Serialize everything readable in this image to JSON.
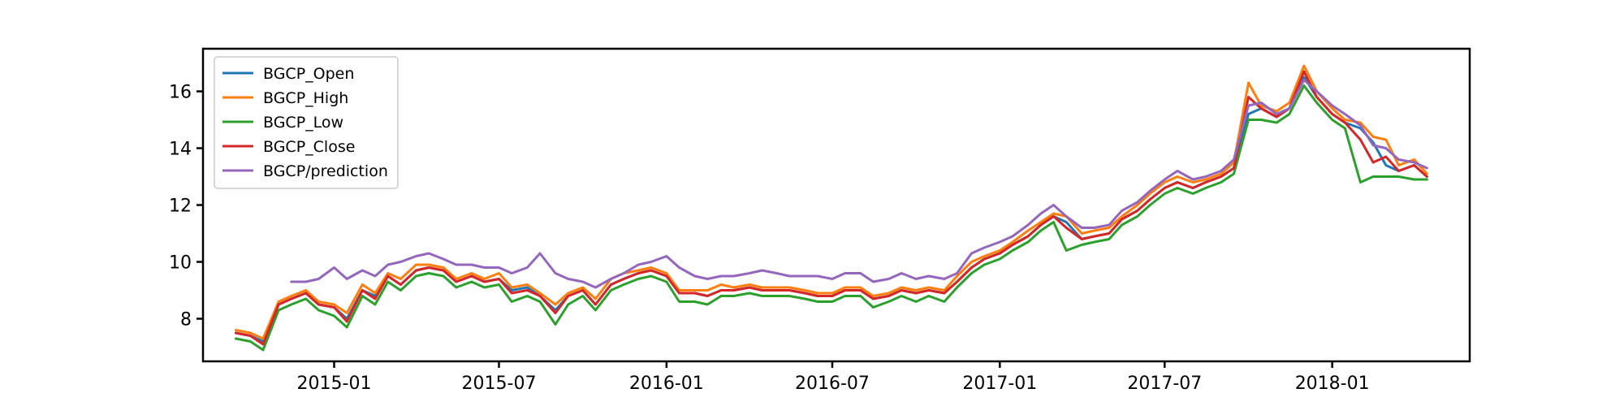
{
  "chart_data": {
    "type": "line",
    "title": "",
    "xlabel": "",
    "ylabel": "",
    "xlim": [
      "2014-08-10",
      "2018-06-01"
    ],
    "ylim": [
      6.5,
      17.5
    ],
    "x_ticks": [
      "2015-01",
      "2015-07",
      "2016-01",
      "2016-07",
      "2017-01",
      "2017-07",
      "2018-01"
    ],
    "y_ticks": [
      8,
      10,
      12,
      14,
      16
    ],
    "grid": false,
    "legend_position": "top-left",
    "x": [
      "2014-09-15",
      "2014-10-01",
      "2014-10-15",
      "2014-11-01",
      "2014-11-15",
      "2014-12-01",
      "2014-12-15",
      "2015-01-01",
      "2015-01-15",
      "2015-02-01",
      "2015-02-15",
      "2015-03-01",
      "2015-03-15",
      "2015-04-01",
      "2015-04-15",
      "2015-05-01",
      "2015-05-15",
      "2015-06-01",
      "2015-06-15",
      "2015-07-01",
      "2015-07-15",
      "2015-08-01",
      "2015-08-15",
      "2015-09-01",
      "2015-09-15",
      "2015-10-01",
      "2015-10-15",
      "2015-11-01",
      "2015-11-15",
      "2015-12-01",
      "2015-12-15",
      "2016-01-01",
      "2016-01-15",
      "2016-02-01",
      "2016-02-15",
      "2016-03-01",
      "2016-03-15",
      "2016-04-01",
      "2016-04-15",
      "2016-05-01",
      "2016-05-15",
      "2016-06-01",
      "2016-06-15",
      "2016-07-01",
      "2016-07-15",
      "2016-08-01",
      "2016-08-15",
      "2016-09-01",
      "2016-09-15",
      "2016-10-01",
      "2016-10-15",
      "2016-11-01",
      "2016-11-15",
      "2016-12-01",
      "2016-12-15",
      "2017-01-01",
      "2017-01-15",
      "2017-02-01",
      "2017-02-15",
      "2017-03-01",
      "2017-03-15",
      "2017-04-01",
      "2017-04-15",
      "2017-05-01",
      "2017-05-15",
      "2017-06-01",
      "2017-06-15",
      "2017-07-01",
      "2017-07-15",
      "2017-08-01",
      "2017-08-15",
      "2017-09-01",
      "2017-09-15",
      "2017-10-01",
      "2017-10-15",
      "2017-11-01",
      "2017-11-15",
      "2017-12-01",
      "2017-12-15",
      "2018-01-01",
      "2018-01-15",
      "2018-02-01",
      "2018-02-15",
      "2018-03-01",
      "2018-03-15",
      "2018-04-01",
      "2018-04-15"
    ],
    "series": [
      {
        "name": "BGCP_Open",
        "color": "#1f77b4",
        "values": [
          7.5,
          7.4,
          7.2,
          8.5,
          8.7,
          8.9,
          8.5,
          8.4,
          8.0,
          9.0,
          8.8,
          9.5,
          9.2,
          9.7,
          9.8,
          9.7,
          9.3,
          9.5,
          9.3,
          9.4,
          9.0,
          9.1,
          8.8,
          8.3,
          8.8,
          9.0,
          8.5,
          9.2,
          9.4,
          9.6,
          9.7,
          9.5,
          8.9,
          8.9,
          8.8,
          9.0,
          9.0,
          9.1,
          9.0,
          9.0,
          9.0,
          8.9,
          8.8,
          8.8,
          9.0,
          9.0,
          8.7,
          8.8,
          9.0,
          8.9,
          9.0,
          8.9,
          9.3,
          9.8,
          10.1,
          10.3,
          10.6,
          10.9,
          11.3,
          11.6,
          11.4,
          10.8,
          10.9,
          11.0,
          11.5,
          11.8,
          12.2,
          12.6,
          12.8,
          12.6,
          12.8,
          13.0,
          13.3,
          15.2,
          15.4,
          15.1,
          15.4,
          16.5,
          15.8,
          15.2,
          14.9,
          14.7,
          14.2,
          13.4,
          13.2,
          13.4,
          13.0
        ]
      },
      {
        "name": "BGCP_High",
        "color": "#ff7f0e",
        "values": [
          7.6,
          7.5,
          7.3,
          8.6,
          8.8,
          9.0,
          8.6,
          8.5,
          8.2,
          9.2,
          8.9,
          9.6,
          9.4,
          9.9,
          9.9,
          9.8,
          9.4,
          9.6,
          9.4,
          9.6,
          9.1,
          9.2,
          8.9,
          8.5,
          8.9,
          9.1,
          8.7,
          9.4,
          9.6,
          9.7,
          9.8,
          9.6,
          9.0,
          9.0,
          9.0,
          9.2,
          9.1,
          9.2,
          9.1,
          9.1,
          9.1,
          9.0,
          8.9,
          8.9,
          9.1,
          9.1,
          8.8,
          8.9,
          9.1,
          9.0,
          9.1,
          9.0,
          9.5,
          10.0,
          10.2,
          10.4,
          10.7,
          11.1,
          11.4,
          11.7,
          11.6,
          11.0,
          11.1,
          11.2,
          11.6,
          12.0,
          12.4,
          12.8,
          13.0,
          12.8,
          12.9,
          13.1,
          13.5,
          16.3,
          15.5,
          15.3,
          15.6,
          16.9,
          16.0,
          15.4,
          15.0,
          14.9,
          14.4,
          14.3,
          13.4,
          13.6,
          13.1
        ]
      },
      {
        "name": "BGCP_Low",
        "color": "#2ca02c",
        "values": [
          7.3,
          7.2,
          6.9,
          8.3,
          8.5,
          8.7,
          8.3,
          8.1,
          7.7,
          8.8,
          8.5,
          9.3,
          9.0,
          9.5,
          9.6,
          9.5,
          9.1,
          9.3,
          9.1,
          9.2,
          8.6,
          8.8,
          8.6,
          7.8,
          8.5,
          8.8,
          8.3,
          9.0,
          9.2,
          9.4,
          9.5,
          9.3,
          8.6,
          8.6,
          8.5,
          8.8,
          8.8,
          8.9,
          8.8,
          8.8,
          8.8,
          8.7,
          8.6,
          8.6,
          8.8,
          8.8,
          8.4,
          8.6,
          8.8,
          8.6,
          8.8,
          8.6,
          9.1,
          9.6,
          9.9,
          10.1,
          10.4,
          10.7,
          11.1,
          11.4,
          10.4,
          10.6,
          10.7,
          10.8,
          11.3,
          11.6,
          12.0,
          12.4,
          12.6,
          12.4,
          12.6,
          12.8,
          13.1,
          15.0,
          15.0,
          14.9,
          15.2,
          16.2,
          15.6,
          15.0,
          14.7,
          12.8,
          13.0,
          13.0,
          13.0,
          12.9,
          12.9
        ]
      },
      {
        "name": "BGCP_Close",
        "color": "#d62728",
        "values": [
          7.5,
          7.4,
          7.1,
          8.5,
          8.7,
          8.9,
          8.5,
          8.4,
          7.9,
          9.0,
          8.7,
          9.5,
          9.2,
          9.7,
          9.8,
          9.7,
          9.3,
          9.5,
          9.3,
          9.4,
          8.9,
          9.0,
          8.8,
          8.2,
          8.8,
          9.0,
          8.5,
          9.2,
          9.4,
          9.6,
          9.7,
          9.5,
          8.9,
          8.9,
          8.8,
          9.0,
          9.0,
          9.1,
          9.0,
          9.0,
          9.0,
          8.9,
          8.8,
          8.8,
          9.0,
          9.0,
          8.7,
          8.8,
          9.0,
          8.9,
          9.0,
          8.9,
          9.3,
          9.8,
          10.1,
          10.3,
          10.6,
          10.9,
          11.3,
          11.6,
          11.2,
          10.8,
          10.9,
          11.0,
          11.5,
          11.8,
          12.2,
          12.6,
          12.8,
          12.6,
          12.8,
          13.0,
          13.3,
          15.8,
          15.4,
          15.1,
          15.4,
          16.7,
          15.8,
          15.2,
          14.9,
          14.3,
          13.5,
          13.7,
          13.2,
          13.4,
          13.0
        ]
      },
      {
        "name": "BGCP/prediction",
        "color": "#9467bd",
        "values": [
          null,
          null,
          null,
          null,
          9.3,
          9.3,
          9.4,
          9.8,
          9.4,
          9.7,
          9.5,
          9.9,
          10.0,
          10.2,
          10.3,
          10.1,
          9.9,
          9.9,
          9.8,
          9.8,
          9.6,
          9.8,
          10.3,
          9.6,
          9.4,
          9.3,
          9.1,
          9.4,
          9.6,
          9.9,
          10.0,
          10.2,
          9.8,
          9.5,
          9.4,
          9.5,
          9.5,
          9.6,
          9.7,
          9.6,
          9.5,
          9.5,
          9.5,
          9.4,
          9.6,
          9.6,
          9.3,
          9.4,
          9.6,
          9.4,
          9.5,
          9.4,
          9.6,
          10.3,
          10.5,
          10.7,
          10.9,
          11.3,
          11.7,
          12.0,
          11.6,
          11.2,
          11.2,
          11.3,
          11.8,
          12.1,
          12.5,
          12.9,
          13.2,
          12.9,
          13.0,
          13.2,
          13.6,
          15.5,
          15.6,
          15.2,
          15.4,
          16.4,
          16.0,
          15.5,
          15.2,
          14.8,
          14.1,
          14.0,
          13.6,
          13.5,
          13.3
        ]
      }
    ]
  }
}
